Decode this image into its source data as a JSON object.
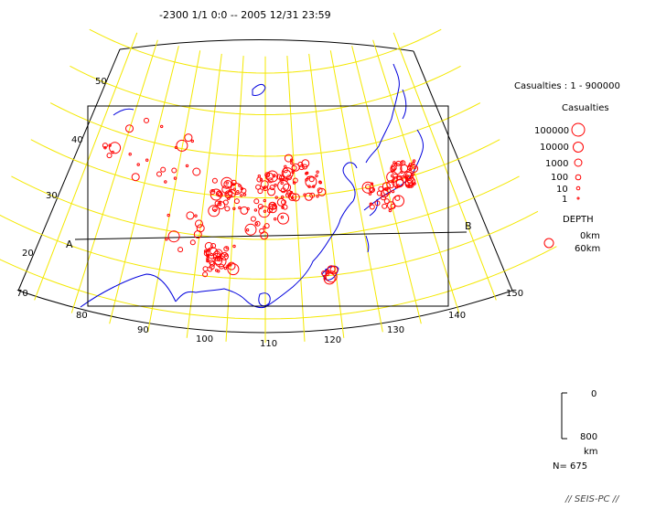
{
  "header": {
    "period": "-2300 1/1  0:0  --  2005 12/31  23:59"
  },
  "colors": {
    "grid": "#f4e800",
    "coast": "#0000dd",
    "event": "#ff0000",
    "frame": "#000000"
  },
  "map": {
    "longitude_labels": [
      "70",
      "80",
      "90",
      "100",
      "110",
      "120",
      "130",
      "140",
      "150"
    ],
    "latitude_labels": [
      "50",
      "40",
      "30",
      "20"
    ],
    "section_labels": {
      "start": "A",
      "end": "B"
    }
  },
  "legend": {
    "range_text": "Casualties : 1  -   900000",
    "size_title": "Casualties",
    "size_entries": [
      "100000",
      "10000",
      "1000",
      "100",
      "10",
      "1"
    ],
    "depth_title": "DEPTH",
    "depth_entries": [
      "0km",
      "60km"
    ]
  },
  "depth_scale": {
    "top_label": "0",
    "bottom_label": "800",
    "unit": "km"
  },
  "count_text": "N= 675",
  "credit": "// SEIS-PC //"
}
